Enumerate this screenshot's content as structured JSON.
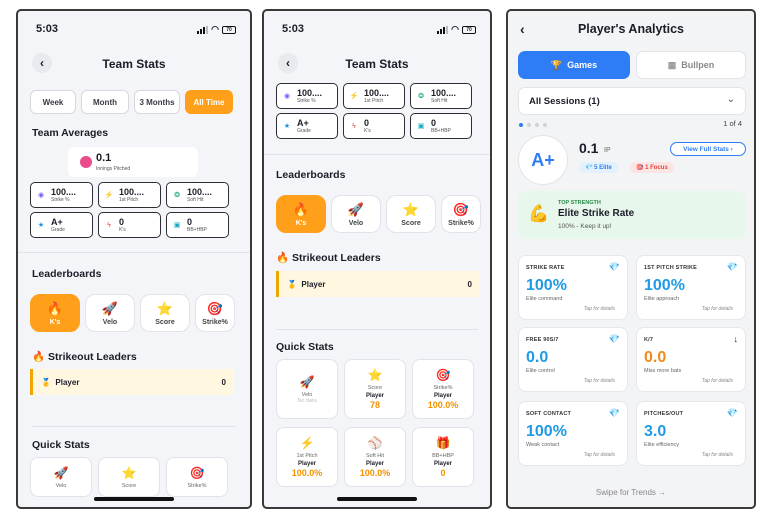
{
  "status": {
    "time": "5:03",
    "battery": "70"
  },
  "team_stats": {
    "title": "Team Stats",
    "ranges": [
      "Week",
      "Month",
      "3 Months",
      "All Time"
    ],
    "team_averages_heading": "Team Averages",
    "innings": {
      "value": "0.1",
      "label": "Innings Pitched"
    },
    "stats": [
      {
        "icon": "target-icon",
        "glyph": "◉",
        "value": "100....",
        "label": "Strike %",
        "color": "#7c5cff"
      },
      {
        "icon": "bolt-icon",
        "glyph": "⚡",
        "value": "100....",
        "label": "1st Pitch",
        "color": "#2f6bff"
      },
      {
        "icon": "soft-hit-icon",
        "glyph": "❂",
        "value": "100....",
        "label": "Soft Hit",
        "color": "#12a37a"
      },
      {
        "icon": "star-icon",
        "glyph": "★",
        "value": "A+",
        "label": "Grade",
        "color": "#1f8fe0"
      },
      {
        "icon": "k-bolt-icon",
        "glyph": "ϟ",
        "value": "0",
        "label": "K's",
        "color": "#e64545"
      },
      {
        "icon": "gift-icon",
        "glyph": "▣",
        "value": "0",
        "label": "BB+HBP",
        "color": "#12a7c0"
      }
    ],
    "leaderboards_heading": "Leaderboards",
    "leader_tiles": [
      {
        "emoji": "🔥",
        "label": "K's",
        "icon": "fire-icon"
      },
      {
        "emoji": "🚀",
        "label": "Velo",
        "icon": "rocket-icon"
      },
      {
        "emoji": "⭐",
        "label": "Score",
        "icon": "star-icon"
      },
      {
        "emoji": "🎯",
        "label": "Strike%",
        "icon": "target-icon"
      }
    ],
    "strikeout_heading": "🔥 Strikeout Leaders",
    "leader_row": {
      "emoji": "🥇",
      "name": "Player",
      "value": "0"
    },
    "quick_stats_heading": "Quick Stats",
    "quick_stats": [
      {
        "emoji": "🚀",
        "label": "Velo",
        "player": "",
        "value": "",
        "nodata": "No data"
      },
      {
        "emoji": "⭐",
        "label": "Score",
        "player": "Player",
        "value": "78",
        "nodata": ""
      },
      {
        "emoji": "🎯",
        "label": "Strike%",
        "player": "Player",
        "value": "100.0%",
        "nodata": ""
      },
      {
        "emoji": "⚡",
        "label": "1st Pitch",
        "player": "Player",
        "value": "100.0%",
        "nodata": ""
      },
      {
        "emoji": "⚾",
        "label": "Soft Hit",
        "player": "Player",
        "value": "100.0%",
        "nodata": ""
      },
      {
        "emoji": "🎁",
        "label": "BB+HBP",
        "player": "Player",
        "value": "0",
        "nodata": ""
      }
    ]
  },
  "analytics": {
    "title": "Player's Analytics",
    "tab_games": "Games",
    "tab_bullpen": "Bullpen",
    "session_select": "All Sessions (1)",
    "page_indicator": "1 of 4",
    "grade": "A+",
    "ip_value": "0.1",
    "ip_unit": "IP",
    "view_full": "View Full Stats ›",
    "elite_badge": "💎 5 Elite",
    "focus_badge": "🎯 1 Focus",
    "strength_kicker": "TOP STRENGTH",
    "strength_title": "Elite Strike Rate",
    "strength_sub": "100% - Keep it up!",
    "metrics": [
      {
        "title": "STRIKE RATE",
        "value": "100%",
        "sub": "Elite command",
        "tap": "Tap for details",
        "color": "#1e9be6",
        "icon": "💎"
      },
      {
        "title": "1ST PITCH STRIKE",
        "value": "100%",
        "sub": "Elite approach",
        "tap": "Tap for details",
        "color": "#1e9be6",
        "icon": "💎"
      },
      {
        "title": "FREE 90S/7",
        "value": "0.0",
        "sub": "Elite control",
        "tap": "Tap for details",
        "color": "#1e9be6",
        "icon": "💎"
      },
      {
        "title": "K/7",
        "value": "0.0",
        "sub": "Miss more bats",
        "tap": "Tap for details",
        "color": "#f08a1c",
        "icon": "↓"
      },
      {
        "title": "SOFT CONTACT",
        "value": "100%",
        "sub": "Weak contact",
        "tap": "Tap for details",
        "color": "#1e9be6",
        "icon": "💎"
      },
      {
        "title": "PITCHES/OUT",
        "value": "3.0",
        "sub": "Elite efficiency",
        "tap": "Tap for details",
        "color": "#1e9be6",
        "icon": "💎"
      }
    ],
    "swipe_hint": "Swipe for Trends →",
    "colors": {
      "primary": "#2f7df6",
      "accent": "#ff9f1a",
      "strength_bg": "#e7f7ec"
    }
  }
}
